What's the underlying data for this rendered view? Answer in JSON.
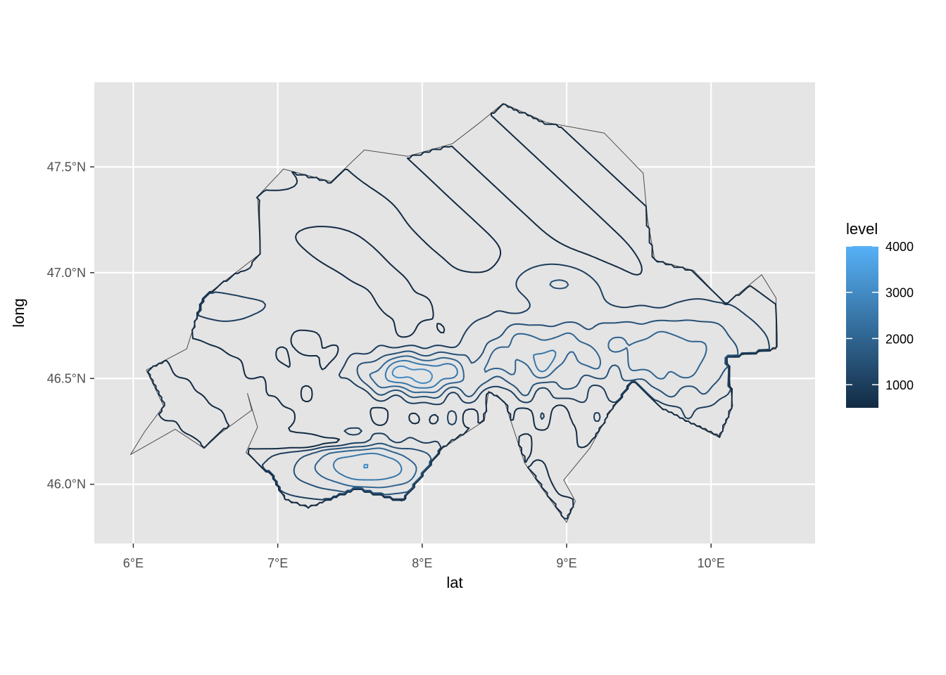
{
  "chart_data": {
    "type": "contour map",
    "xlabel": "lat",
    "ylabel": "long",
    "x_ticks": [
      {
        "value": 6,
        "label": "6°E"
      },
      {
        "value": 7,
        "label": "7°E"
      },
      {
        "value": 8,
        "label": "8°E"
      },
      {
        "value": 9,
        "label": "9°E"
      },
      {
        "value": 10,
        "label": "10°E"
      }
    ],
    "y_ticks": [
      {
        "value": 46.0,
        "label": "46.0°N"
      },
      {
        "value": 46.5,
        "label": "46.5°N"
      },
      {
        "value": 47.0,
        "label": "47.0°N"
      },
      {
        "value": 47.5,
        "label": "47.5°N"
      }
    ],
    "xlim": [
      5.73,
      10.72
    ],
    "ylim": [
      45.72,
      47.9
    ],
    "grid": true,
    "panel_background": "#e5e5e5",
    "grid_color": "#ffffff",
    "region_fill": "#e4e4e4",
    "region_border": "#4d4d4d",
    "legend": {
      "title": "level",
      "position": "right",
      "range": [
        500,
        4000
      ],
      "ticks": [
        1000,
        2000,
        3000,
        4000
      ],
      "color_low": "#132b43",
      "color_high": "#56b1f7"
    },
    "levels": [
      500,
      1000,
      1500,
      2000,
      2500,
      3000,
      3500,
      4000
    ],
    "outline": [
      [
        6.49,
        46.17
      ],
      [
        6.6,
        46.24
      ],
      [
        6.82,
        46.35
      ],
      [
        6.79,
        46.43
      ],
      [
        6.86,
        46.27
      ],
      [
        6.78,
        46.15
      ],
      [
        6.96,
        46.04
      ],
      [
        7.05,
        45.93
      ],
      [
        7.21,
        45.89
      ],
      [
        7.55,
        45.98
      ],
      [
        7.86,
        45.92
      ],
      [
        8.05,
        46.09
      ],
      [
        8.14,
        46.17
      ],
      [
        8.43,
        46.3
      ],
      [
        8.46,
        46.44
      ],
      [
        8.57,
        46.39
      ],
      [
        8.71,
        46.1
      ],
      [
        8.83,
        45.98
      ],
      [
        9.0,
        45.82
      ],
      [
        9.06,
        45.92
      ],
      [
        8.98,
        46.02
      ],
      [
        9.16,
        46.17
      ],
      [
        9.29,
        46.33
      ],
      [
        9.46,
        46.49
      ],
      [
        9.66,
        46.36
      ],
      [
        10.06,
        46.22
      ],
      [
        10.15,
        46.37
      ],
      [
        10.11,
        46.6
      ],
      [
        10.45,
        46.64
      ],
      [
        10.45,
        46.88
      ],
      [
        10.35,
        46.99
      ],
      [
        10.1,
        46.85
      ],
      [
        9.88,
        47.01
      ],
      [
        9.61,
        47.06
      ],
      [
        9.56,
        47.25
      ],
      [
        9.53,
        47.47
      ],
      [
        9.26,
        47.66
      ],
      [
        8.86,
        47.71
      ],
      [
        8.56,
        47.8
      ],
      [
        8.4,
        47.71
      ],
      [
        8.21,
        47.61
      ],
      [
        7.9,
        47.55
      ],
      [
        7.6,
        47.58
      ],
      [
        7.37,
        47.43
      ],
      [
        7.04,
        47.49
      ],
      [
        6.86,
        47.36
      ],
      [
        6.88,
        47.09
      ],
      [
        6.48,
        46.88
      ],
      [
        6.37,
        46.64
      ],
      [
        6.09,
        46.54
      ],
      [
        6.21,
        46.37
      ],
      [
        6.08,
        46.25
      ],
      [
        5.98,
        46.14
      ],
      [
        6.29,
        46.26
      ]
    ]
  }
}
